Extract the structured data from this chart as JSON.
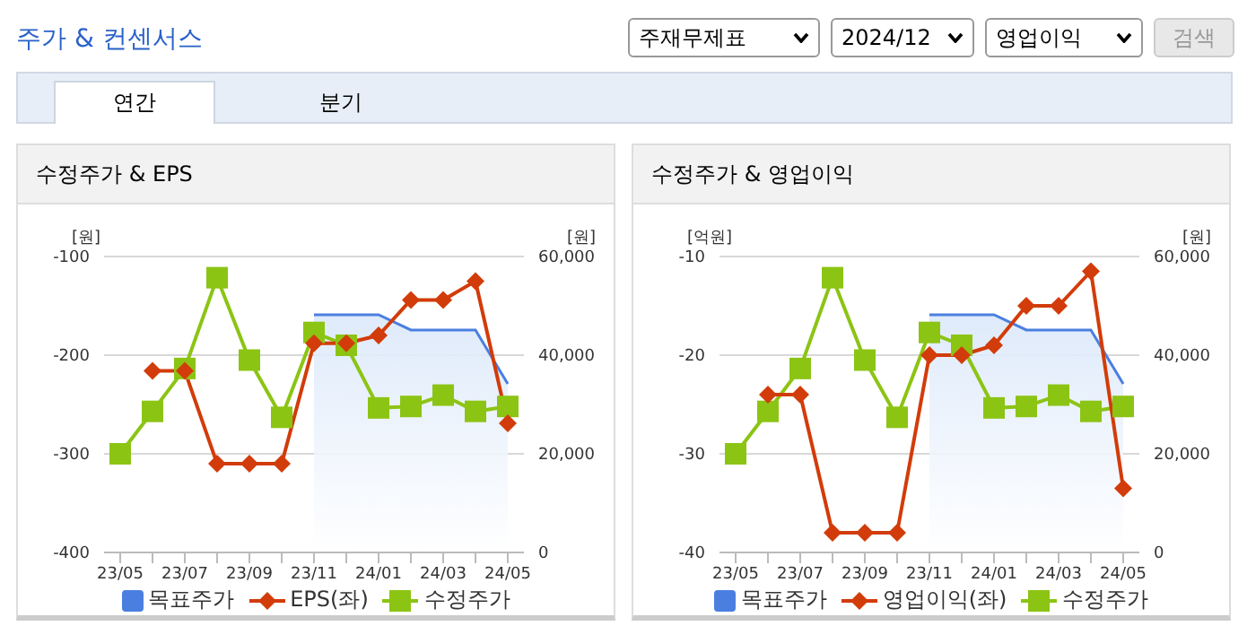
{
  "chart_data": [
    {
      "type": "other",
      "title": "주가 & 컨센서스",
      "annotations": [
        "주재무제표",
        "2024/12",
        "영업이익",
        "검색",
        "연간",
        "분기"
      ]
    },
    {
      "type": "line",
      "title": "수정주가 & EPS",
      "ylabel": "[원]",
      "y2label": "[원]",
      "categories": [
        "23/05",
        null,
        "23/07",
        null,
        "23/09",
        null,
        "23/11",
        null,
        "24/01",
        null,
        "24/03",
        null,
        "24/05"
      ],
      "ylim": [
        -400,
        -100
      ],
      "yticks": [
        -400,
        -300,
        -200,
        -100
      ],
      "y2lim": [
        0,
        60000
      ],
      "y2ticks": [
        {
          "value": 0,
          "label": "0"
        },
        {
          "value": 20000,
          "label": "20,000"
        },
        {
          "value": 40000,
          "label": "40,000"
        },
        {
          "value": 60000,
          "label": "60,000"
        }
      ],
      "grid": "y",
      "legend": "bottom",
      "series": [
        {
          "name": "목표주가",
          "type": "area",
          "axis": "y2",
          "color": "#4a7fe0",
          "marker": "none",
          "values": [
            null,
            null,
            null,
            null,
            null,
            null,
            48200,
            48200,
            48200,
            45100,
            45100,
            45100,
            34200
          ]
        },
        {
          "name": "EPS(좌)",
          "type": "line",
          "color": "#d23c0a",
          "marker": "diamond",
          "values": [
            null,
            -216,
            -216,
            -310,
            -310,
            -310,
            -188,
            -188,
            -180,
            -144,
            -144,
            -125,
            -269
          ]
        },
        {
          "name": "수정주가",
          "type": "line",
          "axis": "y2",
          "color": "#8cc414",
          "marker": "square",
          "values": [
            20000,
            28600,
            37300,
            55700,
            39000,
            27400,
            44600,
            42000,
            29300,
            29600,
            31900,
            28600,
            29600
          ]
        }
      ]
    },
    {
      "type": "line",
      "title": "수정주가 & 영업이익",
      "ylabel": "[억원]",
      "y2label": "[원]",
      "categories": [
        "23/05",
        null,
        "23/07",
        null,
        "23/09",
        null,
        "23/11",
        null,
        "24/01",
        null,
        "24/03",
        null,
        "24/05"
      ],
      "ylim": [
        -40,
        -10
      ],
      "yticks": [
        -40,
        -30,
        -20,
        -10
      ],
      "y2lim": [
        0,
        60000
      ],
      "y2ticks": [
        {
          "value": 0,
          "label": "0"
        },
        {
          "value": 20000,
          "label": "20,000"
        },
        {
          "value": 40000,
          "label": "40,000"
        },
        {
          "value": 60000,
          "label": "60,000"
        }
      ],
      "grid": "y",
      "legend": "bottom",
      "series": [
        {
          "name": "목표주가",
          "type": "area",
          "axis": "y2",
          "color": "#4a7fe0",
          "marker": "none",
          "values": [
            null,
            null,
            null,
            null,
            null,
            null,
            48200,
            48200,
            48200,
            45100,
            45100,
            45100,
            34200
          ]
        },
        {
          "name": "영업이익(좌)",
          "type": "line",
          "color": "#d23c0a",
          "marker": "diamond",
          "values": [
            null,
            -24,
            -24,
            -38,
            -38,
            -38,
            -20,
            -20,
            -19,
            -15,
            -15,
            -11.5,
            -33.5
          ]
        },
        {
          "name": "수정주가",
          "type": "line",
          "axis": "y2",
          "color": "#8cc414",
          "marker": "square",
          "values": [
            20000,
            28600,
            37300,
            55700,
            39000,
            27400,
            44600,
            42000,
            29300,
            29600,
            31900,
            28600,
            29600
          ]
        }
      ]
    }
  ]
}
